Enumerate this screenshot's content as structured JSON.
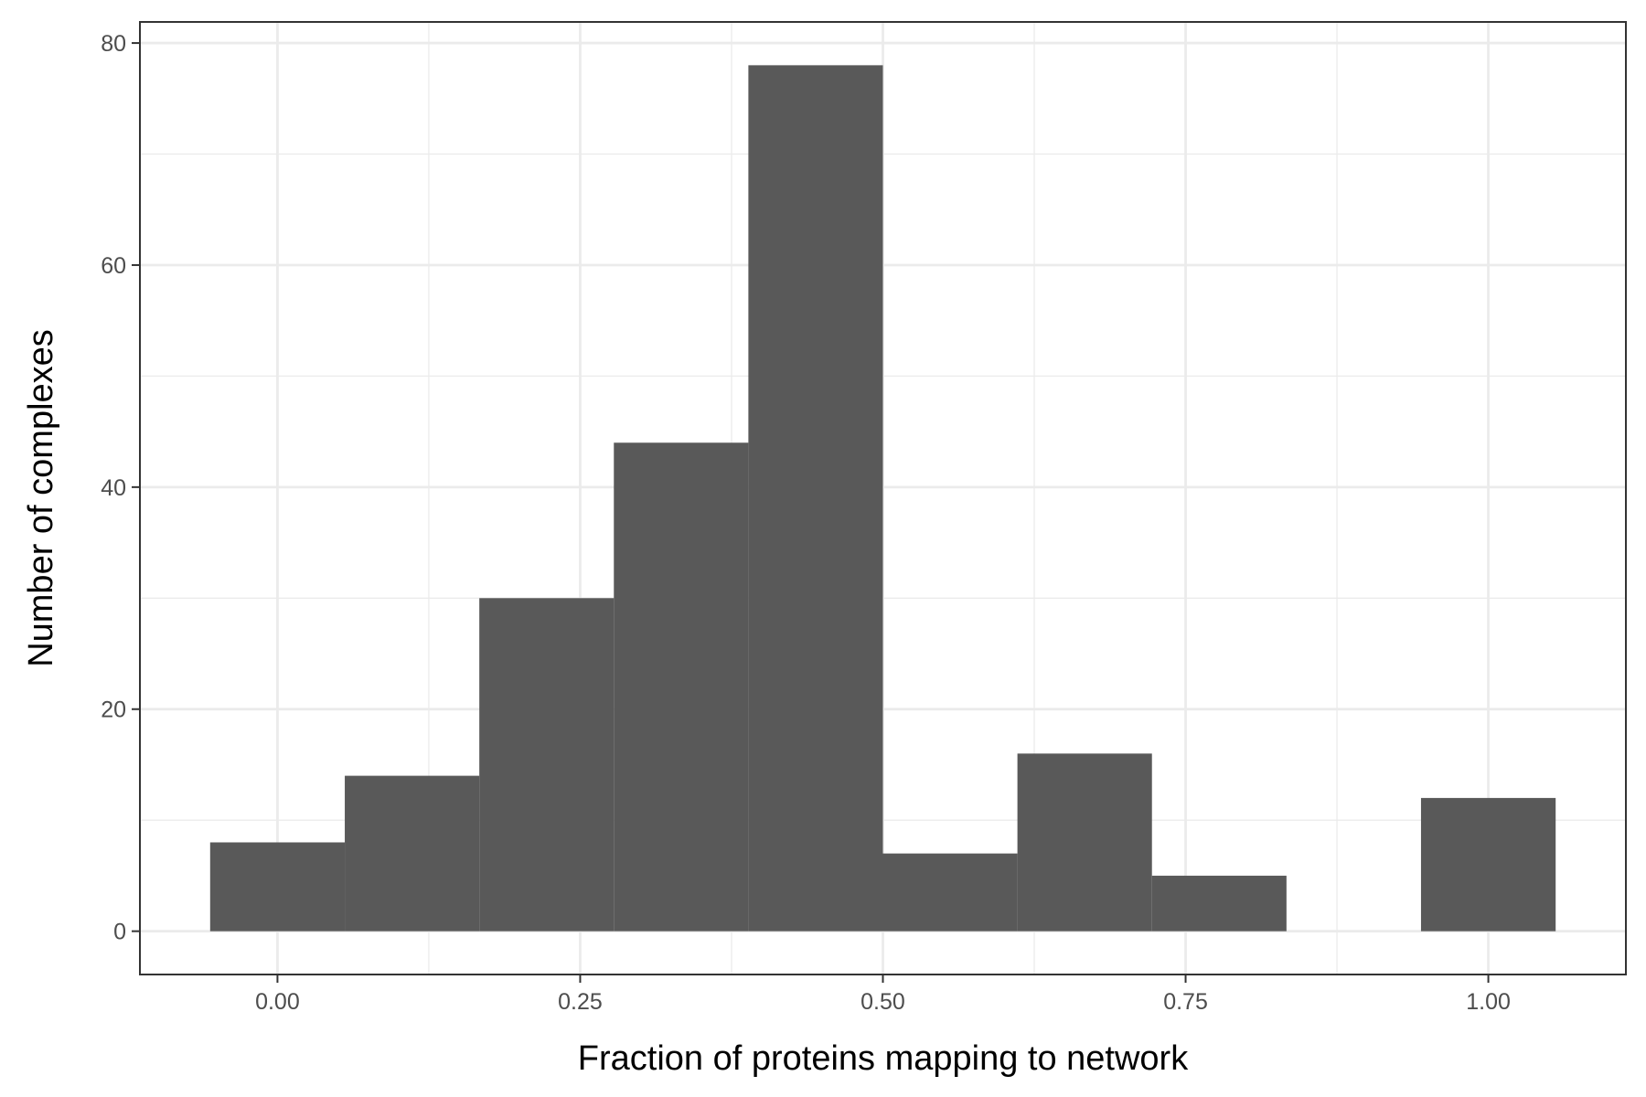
{
  "chart_data": {
    "type": "bar",
    "title": "",
    "xlabel": "Fraction of proteins mapping to network",
    "ylabel": "Number of complexes",
    "xlim": [
      -0.1136,
      1.1136
    ],
    "ylim": [
      -3.9,
      81.9
    ],
    "x_ticks": [
      0.0,
      0.25,
      0.5,
      0.75,
      1.0
    ],
    "x_tick_labels": [
      "0.00",
      "0.25",
      "0.50",
      "0.75",
      "1.00"
    ],
    "y_ticks": [
      0,
      20,
      40,
      60,
      80
    ],
    "y_tick_labels": [
      "0",
      "20",
      "40",
      "60",
      "80"
    ],
    "bin_width": 0.1111,
    "bins": [
      {
        "start": -0.0556,
        "end": 0.0556,
        "count": 8
      },
      {
        "start": 0.0556,
        "end": 0.1667,
        "count": 14
      },
      {
        "start": 0.1667,
        "end": 0.2778,
        "count": 30
      },
      {
        "start": 0.2778,
        "end": 0.3889,
        "count": 44
      },
      {
        "start": 0.3889,
        "end": 0.5,
        "count": 78
      },
      {
        "start": 0.5,
        "end": 0.6111,
        "count": 7
      },
      {
        "start": 0.6111,
        "end": 0.7222,
        "count": 16
      },
      {
        "start": 0.7222,
        "end": 0.8333,
        "count": 5
      },
      {
        "start": 0.8333,
        "end": 0.9444,
        "count": 0
      },
      {
        "start": 0.9444,
        "end": 1.0556,
        "count": 12
      }
    ],
    "grid": true,
    "colors": {
      "bar": "#595959",
      "grid": "#ebebeb",
      "panel_border": "#333333"
    }
  }
}
